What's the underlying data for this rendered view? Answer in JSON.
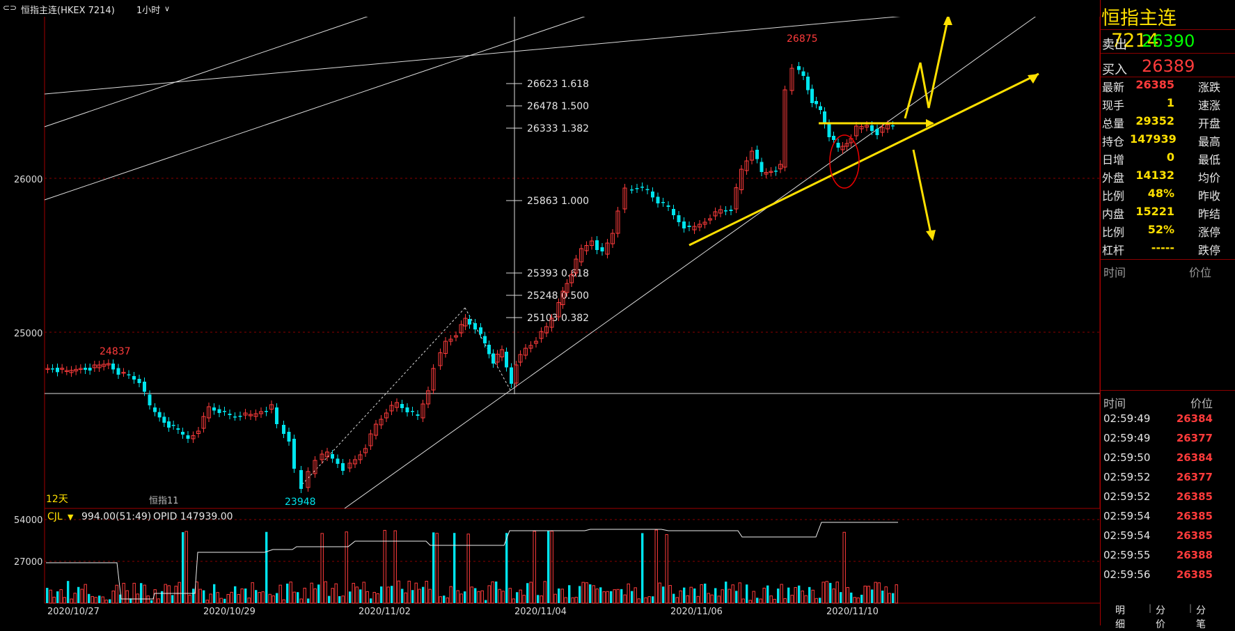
{
  "header": {
    "symbol_title": "恒指主连(HKEX 7214)",
    "period": "1小时",
    "icon": "layout-toggle-icon"
  },
  "price_axis": [
    "26000",
    "25000"
  ],
  "volume_axis": [
    "54000",
    "27000"
  ],
  "date_axis": [
    "2020/10/27",
    "2020/10/29",
    "2020/11/02",
    "2020/11/04",
    "2020/11/06",
    "2020/11/10"
  ],
  "annotations": {
    "high_label": "26875",
    "mid_high_label": "24837",
    "low_label": "23948",
    "ma_label": "12天",
    "series_label": "恒指11",
    "fib_levels": [
      {
        "price": "26623",
        "ratio": "1.618"
      },
      {
        "price": "26478",
        "ratio": "1.500"
      },
      {
        "price": "26333",
        "ratio": "1.382"
      },
      {
        "price": "25863",
        "ratio": "1.000"
      },
      {
        "price": "25393",
        "ratio": "0.618"
      },
      {
        "price": "25248",
        "ratio": "0.500"
      },
      {
        "price": "25103",
        "ratio": "0.382"
      }
    ]
  },
  "volume_header": {
    "indicator": "CJL",
    "volume_text": "994.00(51:49)",
    "opid_text": "OPID 147939.00"
  },
  "side": {
    "title_name": "恒指主连",
    "title_code": "7214",
    "sell_label": "卖出",
    "sell_price": "26390",
    "buy_label": "买入",
    "buy_price": "26389",
    "stats": [
      {
        "label": "最新",
        "value": "26385",
        "right": "涨跌",
        "color": "#ff3b3b"
      },
      {
        "label": "现手",
        "value": "1",
        "right": "速涨",
        "color": "#ffe000"
      },
      {
        "label": "总量",
        "value": "29352",
        "right": "开盘",
        "color": "#ffe000"
      },
      {
        "label": "持仓",
        "value": "147939",
        "right": "最高",
        "color": "#ffe000"
      },
      {
        "label": "日增",
        "value": "0",
        "right": "最低",
        "color": "#ffe000"
      },
      {
        "label": "外盘",
        "value": "14132",
        "right": "均价",
        "color": "#ffe000"
      },
      {
        "label": "比例",
        "value": "48%",
        "right": "昨收",
        "color": "#ffe000"
      },
      {
        "label": "内盘",
        "value": "15221",
        "right": "昨结",
        "color": "#ffe000"
      },
      {
        "label": "比例",
        "value": "52%",
        "right": "涨停",
        "color": "#ffe000"
      },
      {
        "label": "杠杆",
        "value": "-----",
        "right": "跌停",
        "color": "#ffe000"
      }
    ],
    "upper_table": {
      "time_label": "时间",
      "price_label": "价位"
    },
    "ticks_header": {
      "time_label": "时间",
      "price_label": "价位"
    },
    "ticks": [
      {
        "time": "02:59:49",
        "price": "26384"
      },
      {
        "time": "02:59:49",
        "price": "26377"
      },
      {
        "time": "02:59:50",
        "price": "26384"
      },
      {
        "time": "02:59:52",
        "price": "26377"
      },
      {
        "time": "02:59:52",
        "price": "26385"
      },
      {
        "time": "02:59:54",
        "price": "26385"
      },
      {
        "time": "02:59:54",
        "price": "26385"
      },
      {
        "time": "02:59:55",
        "price": "26388"
      },
      {
        "time": "02:59:56",
        "price": "26385"
      }
    ],
    "tabs": [
      "明细",
      "分价",
      "分笔"
    ]
  },
  "colors": {
    "up": "#ff3b3b",
    "down": "#00e5ee",
    "accent": "#ffe000",
    "grid": "#8b0000",
    "green_price": "#00ff00"
  }
}
